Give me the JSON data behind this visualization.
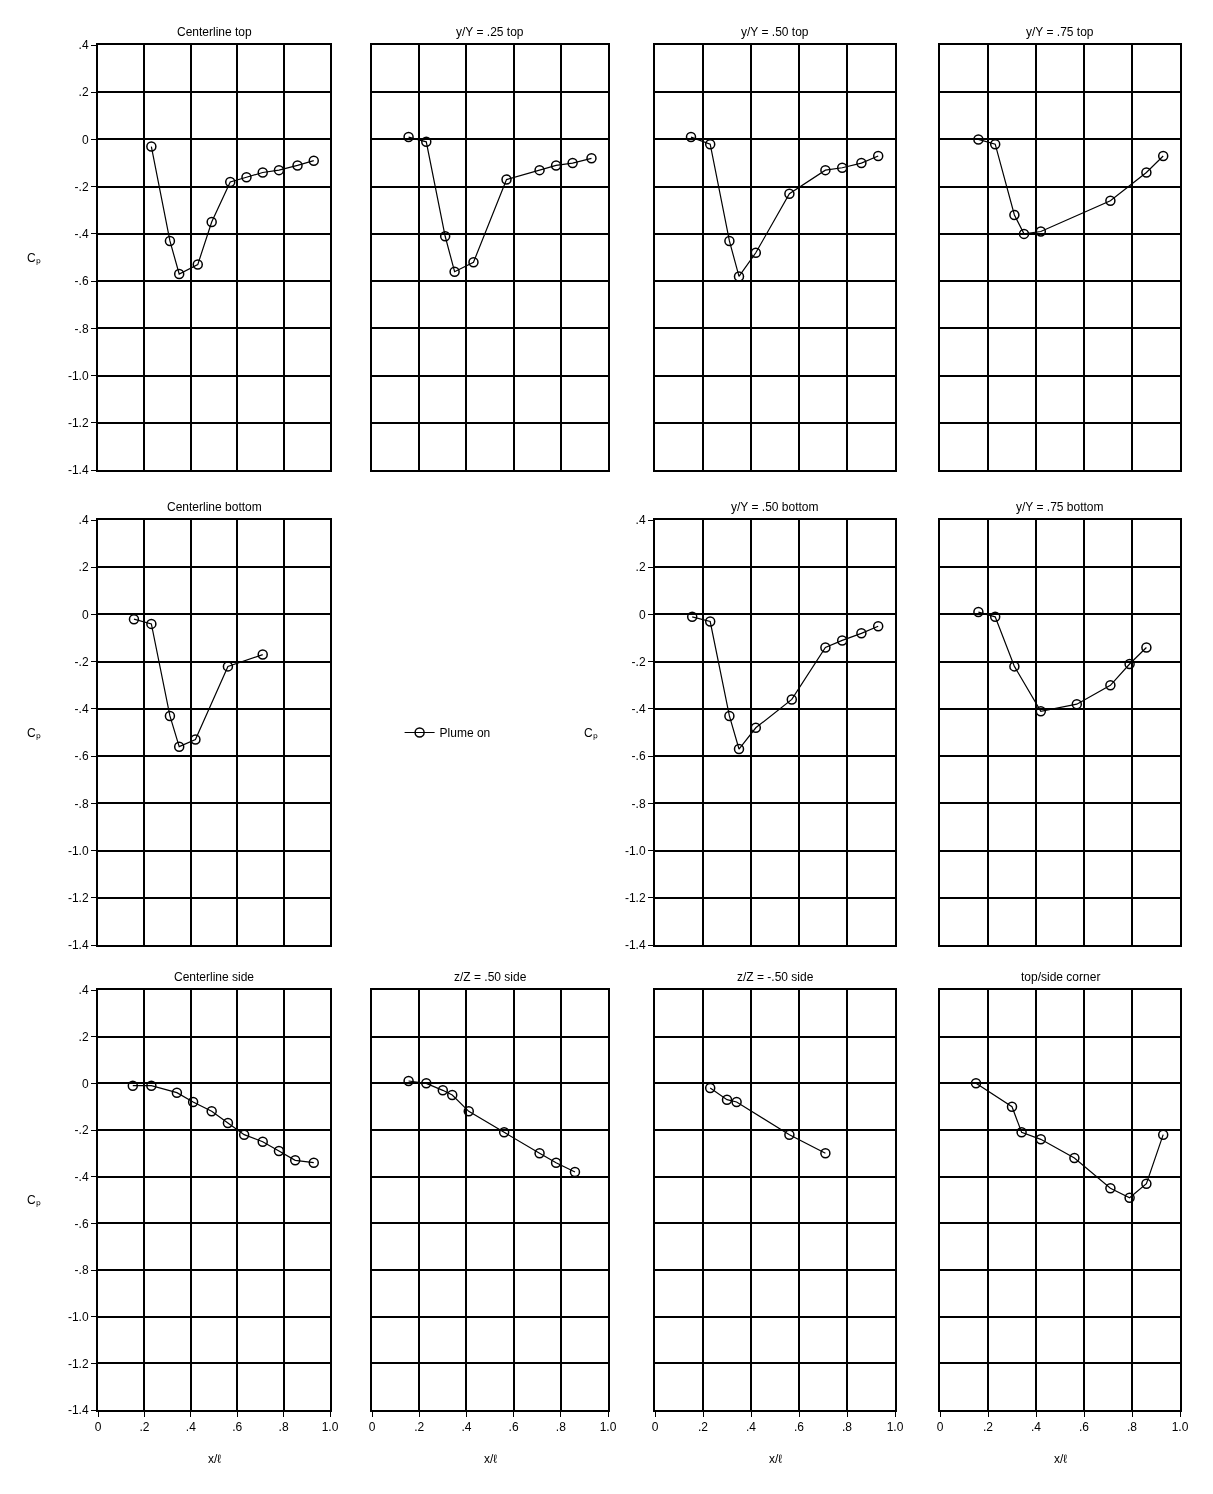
{
  "chart_data": [
    {
      "type": "line",
      "title": "Centerline top",
      "ylabel": "Cₚ",
      "tick_labels": "y",
      "grid": true,
      "marker": "circle",
      "line_style": "solid",
      "xlim": [
        0,
        1
      ],
      "ylim": [
        -1.4,
        0.4
      ],
      "xticks": [
        {
          "value": 0.2,
          "label": null
        },
        {
          "value": 0.4,
          "label": null
        },
        {
          "value": 0.6,
          "label": null
        },
        {
          "value": 0.8,
          "label": null
        }
      ],
      "yticks": [
        {
          "value": 0.4,
          "label": ".4"
        },
        {
          "value": 0.2,
          "label": ".2"
        },
        0,
        {
          "value": -0.2,
          "label": "-.2"
        },
        {
          "value": -0.4,
          "label": "-.4"
        },
        {
          "value": -0.6,
          "label": "-.6"
        },
        {
          "value": -0.8,
          "label": "-.8"
        },
        {
          "value": -1,
          "label": "-1.0"
        },
        {
          "value": -1.2,
          "label": "-1.2"
        },
        {
          "value": -1.4,
          "label": "-1.4"
        }
      ],
      "series": [
        {
          "color": "#000000",
          "x": [
            0.23,
            0.31,
            0.35,
            0.43,
            0.49,
            0.57,
            0.64,
            0.71,
            0.78,
            0.86,
            0.93
          ],
          "values": [
            -0.03,
            -0.43,
            -0.57,
            -0.53,
            -0.35,
            -0.18,
            -0.16,
            -0.14,
            -0.13,
            -0.11,
            -0.09
          ]
        }
      ]
    },
    {
      "type": "line",
      "title": "y/Y = .25 top",
      "tick_labels": false,
      "grid": true,
      "marker": "circle",
      "line_style": "solid",
      "xlim": [
        0,
        1
      ],
      "ylim": [
        -1.4,
        0.4
      ],
      "xticks": [
        {
          "value": 0.2,
          "label": null
        },
        {
          "value": 0.4,
          "label": null
        },
        {
          "value": 0.6,
          "label": null
        },
        {
          "value": 0.8,
          "label": null
        }
      ],
      "yticks": [
        {
          "value": 0.2,
          "label": null
        },
        {
          "value": 0,
          "label": null
        },
        {
          "value": -0.2,
          "label": null
        },
        {
          "value": -0.4,
          "label": null
        },
        {
          "value": -0.6,
          "label": null
        },
        {
          "value": -0.8,
          "label": null
        },
        {
          "value": -1,
          "label": null
        },
        {
          "value": -1.2,
          "label": null
        }
      ],
      "series": [
        {
          "color": "#000000",
          "x": [
            0.155,
            0.23,
            0.31,
            0.35,
            0.43,
            0.57,
            0.71,
            0.78,
            0.85,
            0.93
          ],
          "values": [
            0.01,
            -0.01,
            -0.41,
            -0.56,
            -0.52,
            -0.17,
            -0.13,
            -0.11,
            -0.1,
            -0.08
          ]
        }
      ]
    },
    {
      "type": "line",
      "title": "y/Y = .50 top",
      "tick_labels": false,
      "grid": true,
      "marker": "circle",
      "line_style": "solid",
      "xlim": [
        0,
        1
      ],
      "ylim": [
        -1.4,
        0.4
      ],
      "xticks": [
        {
          "value": 0.2,
          "label": null
        },
        {
          "value": 0.4,
          "label": null
        },
        {
          "value": 0.6,
          "label": null
        },
        {
          "value": 0.8,
          "label": null
        }
      ],
      "yticks": [
        {
          "value": 0.2,
          "label": null
        },
        {
          "value": 0,
          "label": null
        },
        {
          "value": -0.2,
          "label": null
        },
        {
          "value": -0.4,
          "label": null
        },
        {
          "value": -0.6,
          "label": null
        },
        {
          "value": -0.8,
          "label": null
        },
        {
          "value": -1,
          "label": null
        },
        {
          "value": -1.2,
          "label": null
        }
      ],
      "series": [
        {
          "color": "#000000",
          "x": [
            0.15,
            0.23,
            0.31,
            0.35,
            0.42,
            0.56,
            0.71,
            0.78,
            0.86,
            0.93
          ],
          "values": [
            0.01,
            -0.02,
            -0.43,
            -0.58,
            -0.48,
            -0.23,
            -0.13,
            -0.12,
            -0.1,
            -0.07
          ]
        }
      ]
    },
    {
      "type": "line",
      "title": "y/Y = .75 top",
      "tick_labels": false,
      "grid": true,
      "marker": "circle",
      "line_style": "solid",
      "xlim": [
        0,
        1
      ],
      "ylim": [
        -1.4,
        0.4
      ],
      "xticks": [
        {
          "value": 0.2,
          "label": null
        },
        {
          "value": 0.4,
          "label": null
        },
        {
          "value": 0.6,
          "label": null
        },
        {
          "value": 0.8,
          "label": null
        }
      ],
      "yticks": [
        {
          "value": 0.2,
          "label": null
        },
        {
          "value": 0,
          "label": null
        },
        {
          "value": -0.2,
          "label": null
        },
        {
          "value": -0.4,
          "label": null
        },
        {
          "value": -0.6,
          "label": null
        },
        {
          "value": -0.8,
          "label": null
        },
        {
          "value": -1,
          "label": null
        },
        {
          "value": -1.2,
          "label": null
        }
      ],
      "series": [
        {
          "color": "#000000",
          "x": [
            0.16,
            0.23,
            0.31,
            0.35,
            0.42,
            0.71,
            0.86,
            0.93
          ],
          "values": [
            0.0,
            -0.02,
            -0.32,
            -0.4,
            -0.39,
            -0.26,
            -0.14,
            -0.07
          ]
        }
      ]
    },
    {
      "type": "line",
      "title": "Centerline bottom",
      "ylabel": "Cₚ",
      "tick_labels": "y",
      "grid": true,
      "marker": "circle",
      "line_style": "solid",
      "legend": "right",
      "xlim": [
        0,
        1
      ],
      "ylim": [
        -1.4,
        0.4
      ],
      "xticks": [
        {
          "value": 0.2,
          "label": null
        },
        {
          "value": 0.4,
          "label": null
        },
        {
          "value": 0.6,
          "label": null
        },
        {
          "value": 0.8,
          "label": null
        }
      ],
      "yticks": [
        {
          "value": 0.4,
          "label": ".4"
        },
        {
          "value": 0.2,
          "label": ".2"
        },
        0,
        {
          "value": -0.2,
          "label": "-.2"
        },
        {
          "value": -0.4,
          "label": "-.4"
        },
        {
          "value": -0.6,
          "label": "-.6"
        },
        {
          "value": -0.8,
          "label": "-.8"
        },
        {
          "value": -1,
          "label": "-1.0"
        },
        {
          "value": -1.2,
          "label": "-1.2"
        },
        {
          "value": -1.4,
          "label": "-1.4"
        }
      ],
      "series": [
        {
          "name": "Plume on",
          "color": "#000000",
          "x": [
            0.155,
            0.23,
            0.31,
            0.35,
            0.42,
            0.56,
            0.71
          ],
          "values": [
            -0.02,
            -0.04,
            -0.43,
            -0.56,
            -0.53,
            -0.22,
            -0.17
          ]
        }
      ]
    },
    {
      "type": "line",
      "title": "y/Y = .50 bottom",
      "ylabel": "Cₚ",
      "tick_labels": "y",
      "grid": true,
      "marker": "circle",
      "line_style": "solid",
      "xlim": [
        0,
        1
      ],
      "ylim": [
        -1.4,
        0.4
      ],
      "xticks": [
        {
          "value": 0.2,
          "label": null
        },
        {
          "value": 0.4,
          "label": null
        },
        {
          "value": 0.6,
          "label": null
        },
        {
          "value": 0.8,
          "label": null
        }
      ],
      "yticks": [
        {
          "value": 0.4,
          "label": ".4"
        },
        {
          "value": 0.2,
          "label": ".2"
        },
        0,
        {
          "value": -0.2,
          "label": "-.2"
        },
        {
          "value": -0.4,
          "label": "-.4"
        },
        {
          "value": -0.6,
          "label": "-.6"
        },
        {
          "value": -0.8,
          "label": "-.8"
        },
        {
          "value": -1,
          "label": "-1.0"
        },
        {
          "value": -1.2,
          "label": "-1.2"
        },
        {
          "value": -1.4,
          "label": "-1.4"
        }
      ],
      "series": [
        {
          "color": "#000000",
          "x": [
            0.155,
            0.23,
            0.31,
            0.35,
            0.42,
            0.57,
            0.71,
            0.78,
            0.86,
            0.93
          ],
          "values": [
            -0.01,
            -0.03,
            -0.43,
            -0.57,
            -0.48,
            -0.36,
            -0.14,
            -0.11,
            -0.08,
            -0.05
          ]
        }
      ]
    },
    {
      "type": "line",
      "title": "y/Y = .75 bottom",
      "tick_labels": false,
      "grid": true,
      "marker": "circle",
      "line_style": "solid",
      "xlim": [
        0,
        1
      ],
      "ylim": [
        -1.4,
        0.4
      ],
      "xticks": [
        {
          "value": 0.2,
          "label": null
        },
        {
          "value": 0.4,
          "label": null
        },
        {
          "value": 0.6,
          "label": null
        },
        {
          "value": 0.8,
          "label": null
        }
      ],
      "yticks": [
        {
          "value": 0.2,
          "label": null
        },
        {
          "value": 0,
          "label": null
        },
        {
          "value": -0.2,
          "label": null
        },
        {
          "value": -0.4,
          "label": null
        },
        {
          "value": -0.6,
          "label": null
        },
        {
          "value": -0.8,
          "label": null
        },
        {
          "value": -1,
          "label": null
        },
        {
          "value": -1.2,
          "label": null
        }
      ],
      "series": [
        {
          "color": "#000000",
          "x": [
            0.16,
            0.23,
            0.31,
            0.42,
            0.57,
            0.71,
            0.79,
            0.86
          ],
          "values": [
            0.01,
            -0.01,
            -0.22,
            -0.41,
            -0.38,
            -0.3,
            -0.21,
            -0.14
          ]
        }
      ]
    },
    {
      "type": "line",
      "title": "Centerline side",
      "xlabel": "x/ℓ",
      "ylabel": "Cₚ",
      "grid": true,
      "marker": "circle",
      "line_style": "solid",
      "xlim": [
        0,
        1
      ],
      "ylim": [
        -1.4,
        0.4
      ],
      "xticks": [
        0,
        {
          "value": 0.2,
          "label": ".2"
        },
        {
          "value": 0.4,
          "label": ".4"
        },
        {
          "value": 0.6,
          "label": ".6"
        },
        {
          "value": 0.8,
          "label": ".8"
        },
        {
          "value": 1,
          "label": "1.0"
        }
      ],
      "yticks": [
        {
          "value": 0.4,
          "label": ".4"
        },
        {
          "value": 0.2,
          "label": ".2"
        },
        0,
        {
          "value": -0.2,
          "label": "-.2"
        },
        {
          "value": -0.4,
          "label": "-.4"
        },
        {
          "value": -0.6,
          "label": "-.6"
        },
        {
          "value": -0.8,
          "label": "-.8"
        },
        {
          "value": -1,
          "label": "-1.0"
        },
        {
          "value": -1.2,
          "label": "-1.2"
        },
        {
          "value": -1.4,
          "label": "-1.4"
        }
      ],
      "series": [
        {
          "color": "#000000",
          "x": [
            0.15,
            0.23,
            0.34,
            0.41,
            0.49,
            0.56,
            0.63,
            0.71,
            0.78,
            0.85,
            0.93
          ],
          "values": [
            -0.01,
            -0.01,
            -0.04,
            -0.08,
            -0.12,
            -0.17,
            -0.22,
            -0.25,
            -0.29,
            -0.33,
            -0.34
          ]
        }
      ]
    },
    {
      "type": "line",
      "title": "z/Z = .50 side",
      "xlabel": "x/ℓ",
      "tick_labels": "x",
      "grid": true,
      "marker": "circle",
      "line_style": "solid",
      "xlim": [
        0,
        1
      ],
      "ylim": [
        -1.4,
        0.4
      ],
      "xticks": [
        0,
        {
          "value": 0.2,
          "label": ".2"
        },
        {
          "value": 0.4,
          "label": ".4"
        },
        {
          "value": 0.6,
          "label": ".6"
        },
        {
          "value": 0.8,
          "label": ".8"
        },
        {
          "value": 1,
          "label": "1.0"
        }
      ],
      "yticks": [
        {
          "value": 0.2,
          "label": null
        },
        {
          "value": 0,
          "label": null
        },
        {
          "value": -0.2,
          "label": null
        },
        {
          "value": -0.4,
          "label": null
        },
        {
          "value": -0.6,
          "label": null
        },
        {
          "value": -0.8,
          "label": null
        },
        {
          "value": -1,
          "label": null
        },
        {
          "value": -1.2,
          "label": null
        }
      ],
      "series": [
        {
          "color": "#000000",
          "x": [
            0.155,
            0.23,
            0.3,
            0.34,
            0.41,
            0.56,
            0.71,
            0.78,
            0.86
          ],
          "values": [
            0.01,
            0.0,
            -0.03,
            -0.05,
            -0.12,
            -0.21,
            -0.3,
            -0.34,
            -0.38
          ]
        }
      ]
    },
    {
      "type": "line",
      "title": "z/Z = -.50 side",
      "xlabel": "x/ℓ",
      "tick_labels": "x",
      "grid": true,
      "marker": "circle",
      "line_style": "solid",
      "xlim": [
        0,
        1
      ],
      "ylim": [
        -1.4,
        0.4
      ],
      "xticks": [
        0,
        {
          "value": 0.2,
          "label": ".2"
        },
        {
          "value": 0.4,
          "label": ".4"
        },
        {
          "value": 0.6,
          "label": ".6"
        },
        {
          "value": 0.8,
          "label": ".8"
        },
        {
          "value": 1,
          "label": "1.0"
        }
      ],
      "yticks": [
        {
          "value": 0.2,
          "label": null
        },
        {
          "value": 0,
          "label": null
        },
        {
          "value": -0.2,
          "label": null
        },
        {
          "value": -0.4,
          "label": null
        },
        {
          "value": -0.6,
          "label": null
        },
        {
          "value": -0.8,
          "label": null
        },
        {
          "value": -1,
          "label": null
        },
        {
          "value": -1.2,
          "label": null
        }
      ],
      "series": [
        {
          "color": "#000000",
          "x": [
            0.23,
            0.3,
            0.34,
            0.56,
            0.71
          ],
          "values": [
            -0.02,
            -0.07,
            -0.08,
            -0.22,
            -0.3
          ]
        }
      ]
    },
    {
      "type": "line",
      "title": "top/side corner",
      "xlabel": "x/ℓ",
      "tick_labels": "x",
      "grid": true,
      "marker": "circle",
      "line_style": "solid",
      "xlim": [
        0,
        1
      ],
      "ylim": [
        -1.4,
        0.4
      ],
      "xticks": [
        0,
        {
          "value": 0.2,
          "label": ".2"
        },
        {
          "value": 0.4,
          "label": ".4"
        },
        {
          "value": 0.6,
          "label": ".6"
        },
        {
          "value": 0.8,
          "label": ".8"
        },
        {
          "value": 1,
          "label": "1.0"
        }
      ],
      "yticks": [
        {
          "value": 0.2,
          "label": null
        },
        {
          "value": 0,
          "label": null
        },
        {
          "value": -0.2,
          "label": null
        },
        {
          "value": -0.4,
          "label": null
        },
        {
          "value": -0.6,
          "label": null
        },
        {
          "value": -0.8,
          "label": null
        },
        {
          "value": -1,
          "label": null
        },
        {
          "value": -1.2,
          "label": null
        }
      ],
      "series": [
        {
          "color": "#000000",
          "x": [
            0.15,
            0.3,
            0.34,
            0.42,
            0.56,
            0.71,
            0.79,
            0.86,
            0.93
          ],
          "values": [
            0.0,
            -0.1,
            -0.21,
            -0.24,
            -0.32,
            -0.45,
            -0.49,
            -0.43,
            -0.22
          ]
        }
      ]
    }
  ]
}
